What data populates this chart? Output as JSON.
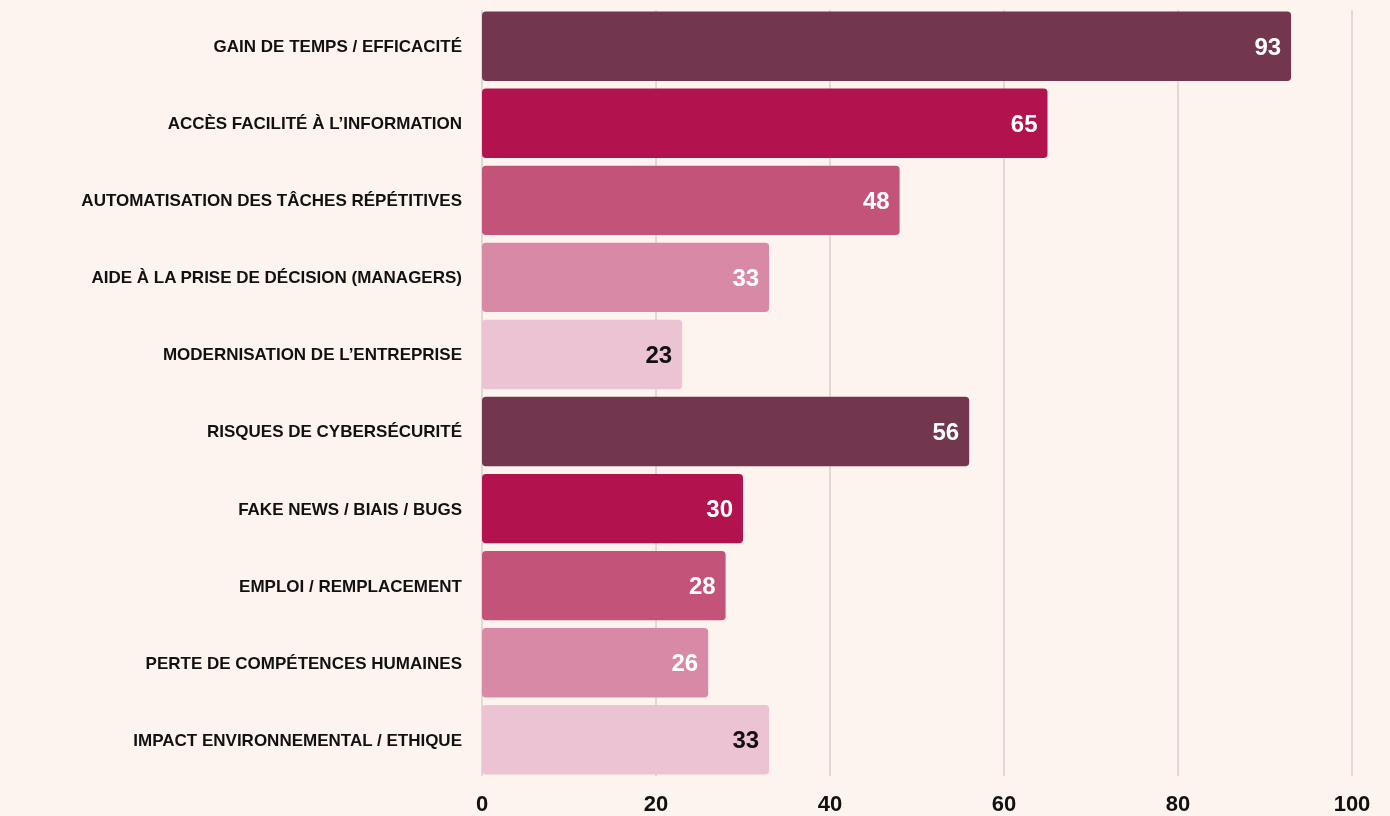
{
  "chart_data": {
    "type": "bar",
    "orientation": "horizontal",
    "categories": [
      "GAIN DE TEMPS / EFFICACITÉ",
      "ACCÈS FACILITÉ À L’INFORMATION",
      "AUTOMATISATION DES TÂCHES RÉPÉTITIVES",
      "AIDE À LA PRISE DE DÉCISION (MANAGERS)",
      "MODERNISATION DE L’ENTREPRISE",
      "RISQUES DE CYBERSÉCURITÉ",
      "FAKE NEWS / BIAIS / BUGS",
      "EMPLOI / REMPLACEMENT",
      "PERTE DE COMPÉTENCES HUMAINES",
      "IMPACT ENVIRONNEMENTAL / ETHIQUE"
    ],
    "values": [
      93,
      65,
      48,
      33,
      23,
      56,
      30,
      28,
      26,
      33
    ],
    "colors": [
      "#72374f",
      "#b2134f",
      "#c4537a",
      "#d889a6",
      "#ecc3d3",
      "#72374f",
      "#b2134f",
      "#c4537a",
      "#d889a6",
      "#ecc3d3"
    ],
    "xlim": [
      0,
      100
    ],
    "xticks": [
      0,
      20,
      40,
      60,
      80,
      100
    ],
    "grid": "x",
    "data_labels": true
  }
}
